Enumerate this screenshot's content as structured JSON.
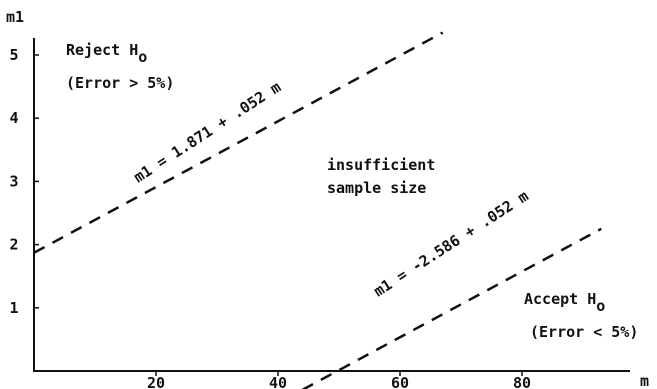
{
  "chart_data": {
    "type": "line",
    "title": "",
    "xlabel": "m",
    "ylabel": "m1",
    "xlim": [
      0,
      93
    ],
    "ylim": [
      0,
      5.5
    ],
    "x_ticks": [
      "20",
      "40",
      "60",
      "80"
    ],
    "y_ticks": [
      "1",
      "2",
      "3",
      "4",
      "5"
    ],
    "grid": false,
    "series": [
      {
        "equation": "m1 = 1.871 + .052 m",
        "line_style": "dashed",
        "x": [
          0,
          67
        ],
        "y": [
          1.871,
          5.355
        ]
      },
      {
        "equation": "m1 = -2.586 + .052 m",
        "line_style": "dashed",
        "x": [
          44,
          93
        ],
        "y": [
          -0.298,
          2.25
        ]
      }
    ],
    "annotations": {
      "reject_title": "Reject H",
      "reject_sub": "o",
      "reject_error": "(Error > 5%)",
      "middle_line1": "insufficient",
      "middle_line2": "sample size",
      "accept_title": "Accept H",
      "accept_sub": "o",
      "accept_error": "(Error < 5%)"
    }
  }
}
